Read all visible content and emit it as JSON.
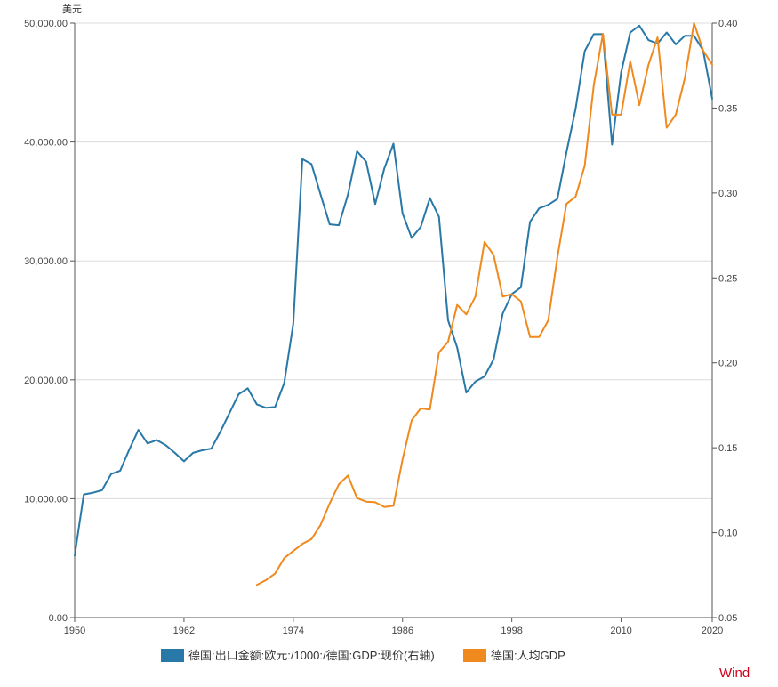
{
  "chart_data": {
    "type": "line",
    "unit_label": "美元",
    "brand": "Wind",
    "colors": {
      "series1": "#2878a8",
      "series2": "#f08a1e",
      "grid": "#dcdcdc",
      "axis": "#555555"
    },
    "x_ticks": [
      "1950",
      "1962",
      "1974",
      "1986",
      "1998",
      "2010",
      "2020"
    ],
    "y_left_ticks": [
      "0.00",
      "10,000.00",
      "20,000.00",
      "30,000.00",
      "40,000.00",
      "50,000.00"
    ],
    "y_right_ticks": [
      "0.05",
      "0.10",
      "0.15",
      "0.20",
      "0.25",
      "0.30",
      "0.35",
      "0.40"
    ],
    "xlim": [
      1950,
      2020
    ],
    "ylim_left": [
      0,
      50000
    ],
    "ylim_right": [
      0.05,
      0.4
    ],
    "grid": true,
    "legend_position": "bottom",
    "series": [
      {
        "name": "德国:出口金额:欧元:/1000:/德国:GDP:现价(右轴)",
        "axis": "right",
        "x": [
          1950,
          1951,
          1952,
          1953,
          1954,
          1955,
          1956,
          1957,
          1958,
          1959,
          1960,
          1961,
          1962,
          1963,
          1964,
          1965,
          1966,
          1967,
          1968,
          1969,
          1970,
          1971,
          1972,
          1973,
          1974,
          1975,
          1976,
          1977,
          1978,
          1979,
          1980,
          1981,
          1982,
          1983,
          1984,
          1985,
          1986,
          1987,
          1988,
          1989,
          1990,
          1991,
          1992,
          1993,
          1994,
          1995,
          1996,
          1997,
          1998,
          1999,
          2000,
          2001,
          2002,
          2003,
          2004,
          2005,
          2006,
          2007,
          2008,
          2009,
          2010,
          2011,
          2012,
          2013,
          2014,
          2015,
          2016,
          2017,
          2018,
          2019,
          2020
        ],
        "values": [
          0.0865,
          0.1225,
          0.1235,
          0.125,
          0.1345,
          0.1365,
          0.149,
          0.1605,
          0.1525,
          0.1545,
          0.1515,
          0.147,
          0.142,
          0.147,
          0.1485,
          0.1495,
          0.1595,
          0.1705,
          0.1815,
          0.185,
          0.1755,
          0.1735,
          0.174,
          0.188,
          0.223,
          0.32,
          0.317,
          0.299,
          0.2815,
          0.281,
          0.299,
          0.3245,
          0.3185,
          0.2935,
          0.3145,
          0.329,
          0.288,
          0.2735,
          0.28,
          0.297,
          0.286,
          0.225,
          0.209,
          0.1825,
          0.189,
          0.192,
          0.202,
          0.229,
          0.2405,
          0.2445,
          0.283,
          0.291,
          0.293,
          0.2965,
          0.324,
          0.3495,
          0.3835,
          0.3935,
          0.3935,
          0.3285,
          0.371,
          0.3945,
          0.3985,
          0.39,
          0.388,
          0.3945,
          0.3875,
          0.3925,
          0.3925,
          0.384,
          0.3555
        ]
      },
      {
        "name": "德国:人均GDP",
        "axis": "left",
        "x": [
          1970,
          1971,
          1972,
          1973,
          1974,
          1975,
          1976,
          1977,
          1978,
          1979,
          1980,
          1981,
          1982,
          1983,
          1984,
          1985,
          1986,
          1987,
          1988,
          1989,
          1990,
          1991,
          1992,
          1993,
          1994,
          1995,
          1996,
          1997,
          1998,
          1999,
          2000,
          2001,
          2002,
          2003,
          2004,
          2005,
          2006,
          2007,
          2008,
          2009,
          2010,
          2011,
          2012,
          2013,
          2014,
          2015,
          2016,
          2017,
          2018,
          2019,
          2020
        ],
        "values": [
          2750,
          3150,
          3700,
          5000,
          5600,
          6200,
          6600,
          7800,
          9600,
          11200,
          11950,
          10050,
          9750,
          9700,
          9300,
          9400,
          13300,
          16600,
          17600,
          17500,
          22300,
          23200,
          26300,
          25500,
          27000,
          31600,
          30500,
          27000,
          27200,
          26600,
          23600,
          23600,
          25000,
          30300,
          34800,
          35400,
          38000,
          44800,
          49100,
          42300,
          42300,
          46800,
          43100,
          46500,
          48800,
          41200,
          42300,
          45400,
          50000,
          47700,
          46500
        ]
      }
    ]
  }
}
